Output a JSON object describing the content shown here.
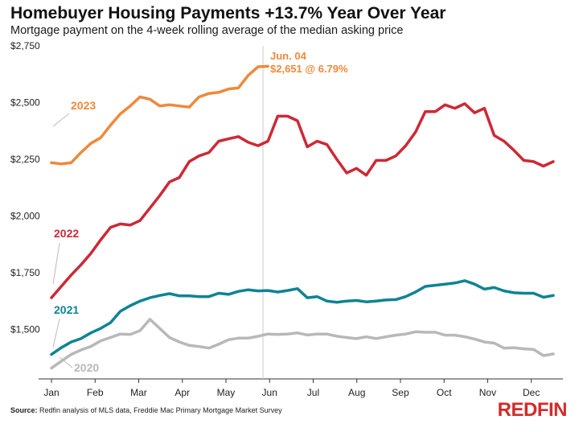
{
  "header": {
    "title": "Homebuyer Housing Payments +13.7% Year Over Year",
    "subtitle": "Mortgage payment on the 4-week rolling average of the median asking price"
  },
  "footer": {
    "source_label": "Source:",
    "source_text": "Redfin analysis of MLS data, Freddie Mac Primary Mortgage Market Survey",
    "logo_text": "REDFIN"
  },
  "colors": {
    "2023": "#f0883a",
    "2022": "#cc2936",
    "2021": "#0f8394",
    "2020": "#b8b8b8",
    "axis": "#333333",
    "marker": "#cccccc"
  },
  "chart_data": {
    "type": "line",
    "ylim": [
      1300,
      2750
    ],
    "yticks": [
      {
        "value": 1500,
        "label": "$1,500"
      },
      {
        "value": 1750,
        "label": "$1,750"
      },
      {
        "value": 2000,
        "label": "$2,000"
      },
      {
        "value": 2250,
        "label": "$2,250"
      },
      {
        "value": 2500,
        "label": "$2,500"
      },
      {
        "value": 2750,
        "label": "$2,750"
      }
    ],
    "xticks": [
      "Jan",
      "Feb",
      "Mar",
      "Apr",
      "May",
      "Jun",
      "Jul",
      "Aug",
      "Sep",
      "Oct",
      "Nov",
      "Dec"
    ],
    "annotation": {
      "label_1": "Jun. 04",
      "label_2": "$2,651 @ 6.79%",
      "week": 21.5
    },
    "series": [
      {
        "name": "2023",
        "values": [
          2235,
          2230,
          2235,
          2280,
          2320,
          2345,
          2400,
          2450,
          2485,
          2525,
          2515,
          2485,
          2490,
          2485,
          2480,
          2525,
          2540,
          2545,
          2560,
          2565,
          2620,
          2658,
          2660
        ]
      },
      {
        "name": "2022",
        "values": [
          1640,
          1690,
          1740,
          1785,
          1835,
          1895,
          1950,
          1965,
          1960,
          1980,
          2035,
          2090,
          2150,
          2170,
          2240,
          2265,
          2280,
          2330,
          2340,
          2350,
          2325,
          2310,
          2330,
          2440,
          2440,
          2420,
          2305,
          2330,
          2315,
          2250,
          2190,
          2210,
          2180,
          2245,
          2245,
          2265,
          2310,
          2370,
          2460,
          2460,
          2490,
          2475,
          2495,
          2455,
          2475,
          2355,
          2330,
          2290,
          2245,
          2240,
          2220,
          2240
        ]
      },
      {
        "name": "2021",
        "values": [
          1390,
          1420,
          1445,
          1460,
          1485,
          1505,
          1530,
          1580,
          1605,
          1625,
          1640,
          1650,
          1658,
          1648,
          1648,
          1645,
          1645,
          1660,
          1655,
          1668,
          1675,
          1670,
          1672,
          1665,
          1672,
          1680,
          1640,
          1645,
          1625,
          1620,
          1625,
          1628,
          1622,
          1625,
          1630,
          1632,
          1645,
          1665,
          1690,
          1695,
          1700,
          1705,
          1715,
          1700,
          1678,
          1685,
          1670,
          1662,
          1660,
          1660,
          1642,
          1650
        ]
      },
      {
        "name": "2020",
        "values": [
          1330,
          1360,
          1390,
          1410,
          1425,
          1450,
          1465,
          1480,
          1478,
          1495,
          1545,
          1505,
          1465,
          1445,
          1430,
          1425,
          1418,
          1435,
          1455,
          1462,
          1462,
          1470,
          1480,
          1478,
          1480,
          1485,
          1476,
          1480,
          1480,
          1470,
          1465,
          1460,
          1468,
          1460,
          1468,
          1475,
          1480,
          1490,
          1488,
          1488,
          1475,
          1475,
          1468,
          1458,
          1445,
          1440,
          1418,
          1420,
          1415,
          1412,
          1385,
          1392
        ]
      }
    ]
  }
}
